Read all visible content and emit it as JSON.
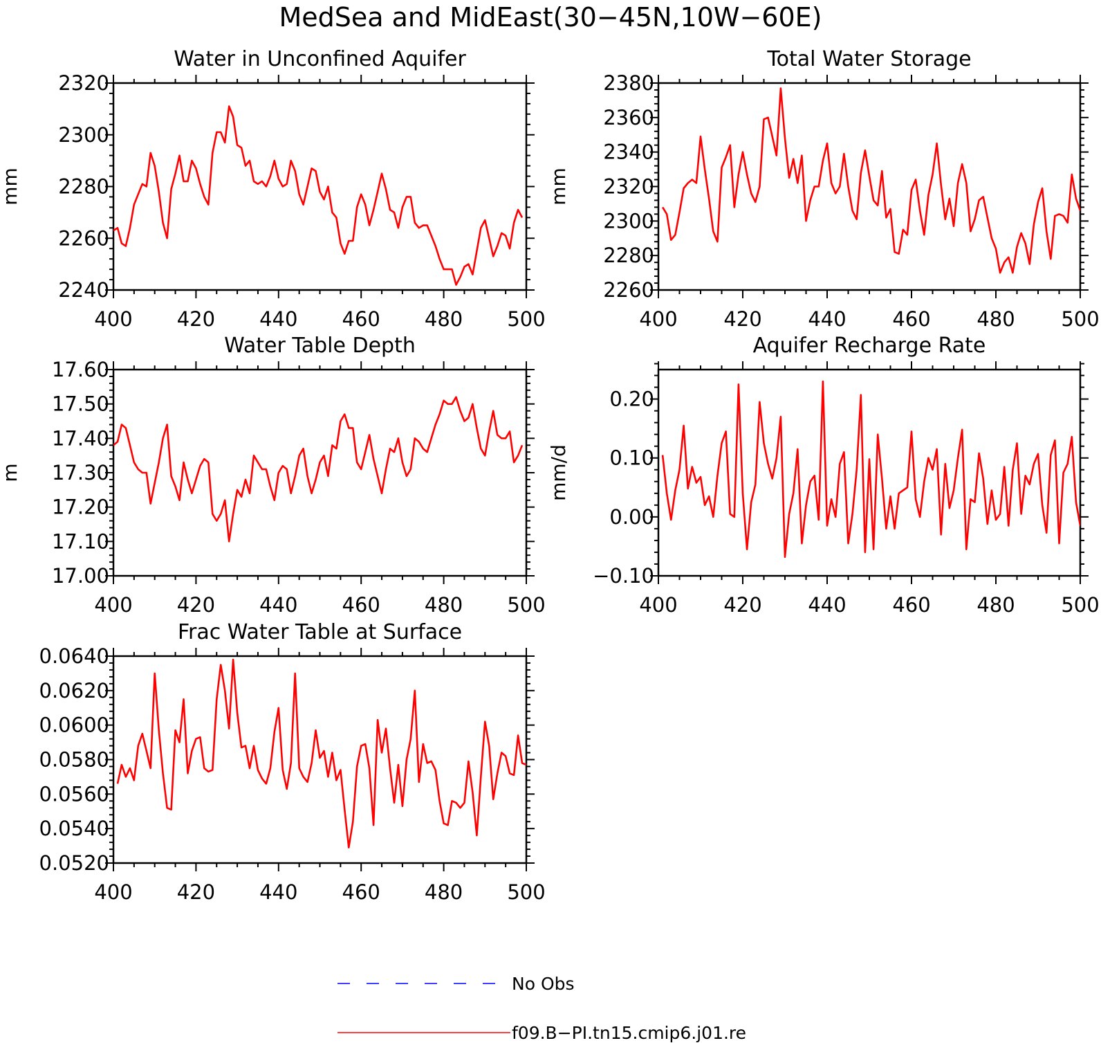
{
  "figure": {
    "title": "MedSea and MidEast(30−45N,10W−60E)",
    "colors": {
      "model": "#ff0000",
      "obs": "#0000ff",
      "axes": "#000000"
    }
  },
  "legend": {
    "items": [
      {
        "label": "No Obs",
        "color": "#0000ff",
        "style": "dashed"
      },
      {
        "label": "f09.B−PI.tn15.cmip6.j01.re",
        "color": "#ff0000",
        "style": "solid"
      }
    ]
  },
  "chart_data": [
    {
      "type": "line",
      "title": "Water in Unconfined Aquifer",
      "xlabel": "",
      "ylabel": "mm",
      "xlim": [
        400,
        500
      ],
      "ylim": [
        2240,
        2320
      ],
      "xticks": [
        400,
        420,
        440,
        460,
        480,
        500
      ],
      "yticks": [
        2240,
        2260,
        2280,
        2300,
        2320
      ],
      "ytick_labels": [
        "2240",
        "2260",
        "2280",
        "2300",
        "2320"
      ],
      "x_start": 400,
      "series": [
        {
          "name": "f09.B−PI.tn15.cmip6.j01.re",
          "values": [
            2263,
            2264,
            2258,
            2257,
            2264,
            2273,
            2277,
            2281,
            2280,
            2293,
            2288,
            2278,
            2266,
            2260,
            2279,
            2285,
            2292,
            2282,
            2282,
            2290,
            2287,
            2281,
            2276,
            2273,
            2293,
            2301,
            2301,
            2297,
            2311,
            2307,
            2296,
            2295,
            2288,
            2290,
            2282,
            2281,
            2282,
            2280,
            2284,
            2290,
            2283,
            2280,
            2281,
            2290,
            2286,
            2277,
            2273,
            2280,
            2287,
            2286,
            2278,
            2275,
            2280,
            2270,
            2268,
            2258,
            2254,
            2259,
            2259,
            2272,
            2277,
            2273,
            2265,
            2271,
            2278,
            2285,
            2279,
            2271,
            2270,
            2264,
            2272,
            2276,
            2276,
            2266,
            2264,
            2265,
            2265,
            2261,
            2257,
            2252,
            2248,
            2248,
            2248,
            2242,
            2245,
            2249,
            2250,
            2246,
            2255,
            2264,
            2267,
            2260,
            2253,
            2257,
            2262,
            2261,
            2256,
            2266,
            2271,
            2268
          ]
        }
      ]
    },
    {
      "type": "line",
      "title": "Total Water Storage",
      "xlabel": "",
      "ylabel": "mm",
      "xlim": [
        400,
        500
      ],
      "ylim": [
        2260,
        2380
      ],
      "xticks": [
        400,
        420,
        440,
        460,
        480,
        500
      ],
      "yticks": [
        2260,
        2280,
        2300,
        2320,
        2340,
        2360,
        2380
      ],
      "ytick_labels": [
        "2260",
        "2280",
        "2300",
        "2320",
        "2340",
        "2360",
        "2380"
      ],
      "x_start": 401,
      "series": [
        {
          "name": "f09.B−PI.tn15.cmip6.j01.re",
          "values": [
            2308,
            2304,
            2289,
            2292,
            2305,
            2319,
            2322,
            2324,
            2322,
            2349,
            2330,
            2313,
            2294,
            2288,
            2331,
            2337,
            2344,
            2308,
            2327,
            2340,
            2327,
            2316,
            2311,
            2320,
            2359,
            2360,
            2349,
            2338,
            2377,
            2348,
            2325,
            2336,
            2322,
            2338,
            2300,
            2312,
            2320,
            2320,
            2335,
            2345,
            2322,
            2316,
            2320,
            2339,
            2320,
            2306,
            2301,
            2328,
            2341,
            2326,
            2312,
            2309,
            2329,
            2302,
            2307,
            2282,
            2281,
            2295,
            2292,
            2318,
            2324,
            2306,
            2292,
            2315,
            2327,
            2345,
            2321,
            2301,
            2313,
            2297,
            2322,
            2333,
            2322,
            2294,
            2301,
            2312,
            2314,
            2302,
            2290,
            2284,
            2270,
            2276,
            2279,
            2270,
            2285,
            2293,
            2287,
            2275,
            2298,
            2311,
            2319,
            2294,
            2278,
            2303,
            2304,
            2303,
            2299,
            2327,
            2313,
            2306
          ]
        }
      ]
    },
    {
      "type": "line",
      "title": "Water Table Depth",
      "xlabel": "",
      "ylabel": "m",
      "xlim": [
        400,
        500
      ],
      "ylim": [
        17.0,
        17.6
      ],
      "xticks": [
        400,
        420,
        440,
        460,
        480,
        500
      ],
      "yticks": [
        17.0,
        17.1,
        17.2,
        17.3,
        17.4,
        17.5,
        17.6
      ],
      "ytick_labels": [
        "17.00",
        "17.10",
        "17.20",
        "17.30",
        "17.40",
        "17.50",
        "17.60"
      ],
      "x_start": 400,
      "series": [
        {
          "name": "f09.B−PI.tn15.cmip6.j01.re",
          "values": [
            17.38,
            17.39,
            17.44,
            17.43,
            17.38,
            17.33,
            17.31,
            17.3,
            17.3,
            17.21,
            17.27,
            17.33,
            17.4,
            17.44,
            17.29,
            17.26,
            17.22,
            17.33,
            17.28,
            17.24,
            17.28,
            17.32,
            17.34,
            17.33,
            17.18,
            17.16,
            17.18,
            17.22,
            17.1,
            17.18,
            17.25,
            17.23,
            17.28,
            17.24,
            17.35,
            17.33,
            17.31,
            17.31,
            17.26,
            17.22,
            17.3,
            17.32,
            17.31,
            17.24,
            17.29,
            17.35,
            17.37,
            17.29,
            17.24,
            17.28,
            17.33,
            17.35,
            17.29,
            17.38,
            17.37,
            17.45,
            17.47,
            17.43,
            17.43,
            17.33,
            17.31,
            17.36,
            17.41,
            17.34,
            17.29,
            17.24,
            17.31,
            17.37,
            17.36,
            17.4,
            17.33,
            17.29,
            17.31,
            17.4,
            17.39,
            17.37,
            17.36,
            17.4,
            17.44,
            17.47,
            17.51,
            17.5,
            17.5,
            17.52,
            17.48,
            17.45,
            17.46,
            17.5,
            17.43,
            17.37,
            17.35,
            17.42,
            17.48,
            17.41,
            17.4,
            17.4,
            17.42,
            17.33,
            17.35,
            17.38
          ]
        }
      ]
    },
    {
      "type": "line",
      "title": "Aquifer Recharge Rate",
      "xlabel": "",
      "ylabel": "mm/d",
      "xlim": [
        400,
        500
      ],
      "ylim": [
        -0.1,
        0.25
      ],
      "xticks": [
        400,
        420,
        440,
        460,
        480,
        500
      ],
      "yticks": [
        -0.1,
        0.0,
        0.1,
        0.2
      ],
      "ytick_labels": [
        "−0.10",
        "0.00",
        "0.10",
        "0.20"
      ],
      "x_start": 401,
      "series": [
        {
          "name": "f09.B−PI.tn15.cmip6.j01.re",
          "values": [
            0.105,
            0.04,
            -0.005,
            0.045,
            0.08,
            0.155,
            0.048,
            0.085,
            0.058,
            0.068,
            0.02,
            0.035,
            0.0,
            0.07,
            0.125,
            0.145,
            0.005,
            0.0,
            0.225,
            0.04,
            -0.055,
            0.025,
            0.055,
            0.195,
            0.125,
            0.09,
            0.065,
            0.1,
            0.17,
            -0.068,
            0.005,
            0.04,
            0.115,
            -0.045,
            0.02,
            0.06,
            0.07,
            -0.005,
            0.23,
            -0.015,
            0.03,
            0.0,
            0.09,
            0.11,
            -0.045,
            0.005,
            0.08,
            0.207,
            -0.06,
            0.098,
            -0.055,
            0.14,
            0.065,
            -0.02,
            0.035,
            -0.02,
            0.04,
            0.045,
            0.05,
            0.145,
            0.03,
            0.0,
            0.06,
            0.1,
            0.08,
            0.115,
            -0.03,
            0.09,
            0.015,
            0.045,
            0.1,
            0.148,
            -0.055,
            0.03,
            0.025,
            0.108,
            0.065,
            -0.012,
            0.045,
            -0.005,
            0.005,
            0.085,
            -0.015,
            0.08,
            0.125,
            0.005,
            0.07,
            0.055,
            0.09,
            0.107,
            0.02,
            -0.027,
            0.105,
            0.13,
            -0.045,
            0.075,
            0.09,
            0.136,
            0.025,
            -0.015
          ]
        }
      ]
    },
    {
      "type": "line",
      "title": "Frac Water Table at Surface",
      "xlabel": "",
      "ylabel": "",
      "xlim": [
        400,
        500
      ],
      "ylim": [
        0.052,
        0.064
      ],
      "xticks": [
        400,
        420,
        440,
        460,
        480,
        500
      ],
      "yticks": [
        0.052,
        0.054,
        0.056,
        0.058,
        0.06,
        0.062,
        0.064
      ],
      "ytick_labels": [
        "0.0520",
        "0.0540",
        "0.0560",
        "0.0580",
        "0.0600",
        "0.0620",
        "0.0640"
      ],
      "x_start": 401,
      "series": [
        {
          "name": "f09.B−PI.tn15.cmip6.j01.re",
          "values": [
            0.0566,
            0.0577,
            0.057,
            0.0575,
            0.0568,
            0.0588,
            0.0595,
            0.0585,
            0.0575,
            0.063,
            0.0597,
            0.0572,
            0.0552,
            0.0551,
            0.0597,
            0.059,
            0.0615,
            0.0572,
            0.0585,
            0.0592,
            0.0593,
            0.0575,
            0.0573,
            0.0574,
            0.0615,
            0.0635,
            0.062,
            0.0598,
            0.0638,
            0.0607,
            0.0587,
            0.0588,
            0.0575,
            0.0588,
            0.0574,
            0.0569,
            0.0566,
            0.0575,
            0.0596,
            0.061,
            0.0574,
            0.0563,
            0.0578,
            0.063,
            0.0575,
            0.057,
            0.0567,
            0.0578,
            0.0597,
            0.0581,
            0.0585,
            0.057,
            0.0584,
            0.0568,
            0.0574,
            0.0551,
            0.0529,
            0.0544,
            0.0576,
            0.0588,
            0.0589,
            0.0575,
            0.0542,
            0.0603,
            0.0584,
            0.0598,
            0.0575,
            0.0555,
            0.0577,
            0.0553,
            0.058,
            0.0592,
            0.062,
            0.0567,
            0.0589,
            0.0578,
            0.0579,
            0.0574,
            0.0556,
            0.0543,
            0.0542,
            0.0556,
            0.0555,
            0.0552,
            0.0555,
            0.0579,
            0.0561,
            0.0536,
            0.057,
            0.0602,
            0.0588,
            0.0557,
            0.0572,
            0.0584,
            0.0582,
            0.0572,
            0.0571,
            0.0594,
            0.0578,
            0.0577
          ]
        }
      ]
    }
  ]
}
